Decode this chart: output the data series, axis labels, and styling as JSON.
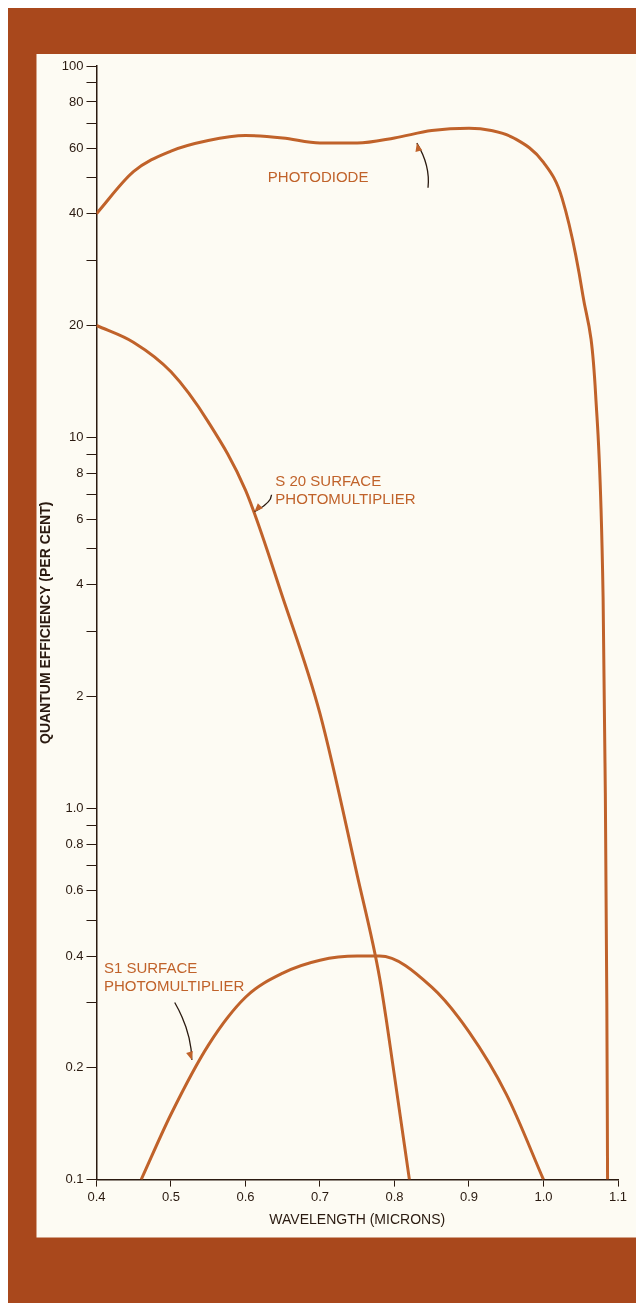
{
  "chart_data": {
    "type": "line",
    "xlabel": "WAVELENGTH (MICRONS)",
    "ylabel": "QUANTUM EFFICIENCY (PER CENT)",
    "log": "y",
    "grid": false,
    "legend": false,
    "marker": "none",
    "line_style": "solid",
    "xlim": [
      0.4,
      1.1
    ],
    "xticks": [
      0.4,
      0.5,
      0.6,
      0.7,
      0.8,
      0.9,
      {
        "value": 1.0,
        "label": "1.0"
      },
      1.1
    ],
    "ylim": [
      0.1,
      100
    ],
    "yticks": [
      0.1,
      0.2,
      {
        "value": 0.3,
        "label": null
      },
      0.4,
      {
        "value": 0.5,
        "label": null
      },
      0.6,
      {
        "value": 0.7,
        "label": null
      },
      0.8,
      {
        "value": 0.9,
        "label": null
      },
      {
        "value": 1,
        "label": "1.0"
      },
      2,
      {
        "value": 3,
        "label": null
      },
      4,
      {
        "value": 5,
        "label": null
      },
      6,
      {
        "value": 7,
        "label": null
      },
      8,
      {
        "value": 9,
        "label": null
      },
      10,
      20,
      {
        "value": 30,
        "label": null
      },
      40,
      {
        "value": 50,
        "label": null
      },
      60,
      {
        "value": 70,
        "label": null
      },
      80,
      {
        "value": 90,
        "label": null
      },
      100
    ],
    "series": [
      {
        "name": "PHOTODIODE",
        "color": "#c0622a",
        "x": [
          0.4,
          0.45,
          0.5,
          0.55,
          0.6,
          0.65,
          0.7,
          0.75,
          0.8,
          0.85,
          0.9,
          0.93,
          0.96,
          1.0,
          1.025,
          1.053,
          1.07,
          1.08,
          1.083,
          1.085,
          1.086
        ],
        "values": [
          40,
          52,
          59,
          63,
          65,
          64,
          62,
          62,
          64,
          67,
          68,
          67,
          64,
          55,
          44,
          24,
          13,
          3.7,
          1.1,
          0.3,
          0.1
        ]
      },
      {
        "name": "S 20 SURFACE PHOTOMULTIPLIER",
        "color": "#c0622a",
        "x": [
          0.4,
          0.45,
          0.5,
          0.55,
          0.6,
          0.65,
          0.7,
          0.75,
          0.78,
          0.8,
          0.82
        ],
        "values": [
          20,
          18,
          15,
          11,
          7.2,
          3.7,
          1.8,
          0.66,
          0.35,
          0.19,
          0.1
        ]
      },
      {
        "name": "S1 SURFACE PHOTOMULTIPLIER",
        "color": "#c0622a",
        "x": [
          0.46,
          0.5,
          0.55,
          0.6,
          0.65,
          0.7,
          0.75,
          0.78,
          0.85,
          0.9,
          0.95,
          1.0
        ],
        "values": [
          0.1,
          0.15,
          0.23,
          0.31,
          0.36,
          0.39,
          0.4,
          0.4,
          0.33,
          0.25,
          0.17,
          0.1
        ]
      }
    ]
  }
}
